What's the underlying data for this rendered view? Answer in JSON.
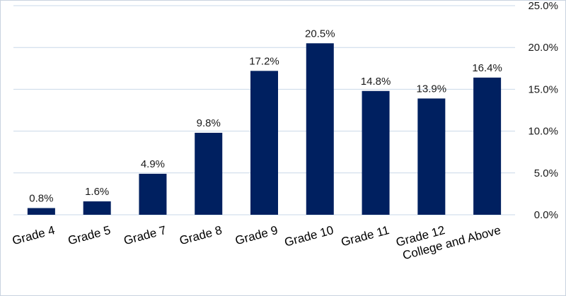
{
  "chart_data": {
    "type": "bar",
    "title": "",
    "xlabel": "",
    "ylabel": "",
    "categories": [
      "Grade 4",
      "Grade 5",
      "Grade 7",
      "Grade 8",
      "Grade 9",
      "Grade 10",
      "Grade 11",
      "Grade 12",
      "College and Above"
    ],
    "values": [
      0.8,
      1.6,
      4.9,
      9.8,
      17.2,
      20.5,
      14.8,
      13.9,
      16.4
    ],
    "data_labels": [
      "0.8%",
      "1.6%",
      "4.9%",
      "9.8%",
      "17.2%",
      "20.5%",
      "14.8%",
      "13.9%",
      "16.4%"
    ],
    "ylim": [
      0,
      25
    ],
    "yticks": [
      0,
      5,
      10,
      15,
      20,
      25
    ],
    "ytick_labels": [
      "0.0%",
      "5.0%",
      "10.0%",
      "15.0%",
      "20.0%",
      "25.0%"
    ],
    "y_axis_side": "right",
    "grid": true,
    "legend": "none",
    "bar_color": "#002060"
  }
}
